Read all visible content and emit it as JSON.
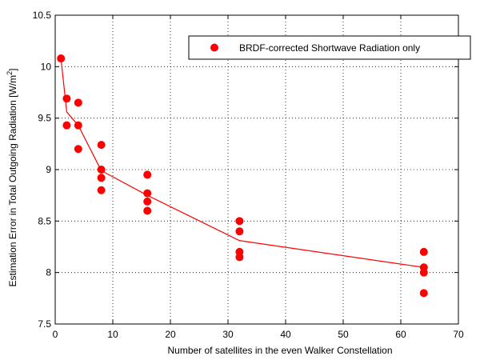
{
  "chart_data": {
    "type": "scatter",
    "title": "",
    "xlabel": "Number of satellites in the even Walker Constellation",
    "ylabel": "Estimation Error in Total Outgoing Radiation [W/m",
    "ylabel_superscript": "2",
    "ylabel_suffix": "]",
    "xlim": [
      0,
      70
    ],
    "ylim": [
      7.5,
      10.5
    ],
    "x_ticks": [
      0,
      10,
      20,
      30,
      40,
      50,
      60,
      70
    ],
    "y_ticks": [
      7.5,
      8,
      8.5,
      9,
      9.5,
      10,
      10.5
    ],
    "x_tick_labels": [
      "0",
      "10",
      "20",
      "30",
      "40",
      "50",
      "60",
      "70"
    ],
    "y_tick_labels": [
      "7.5",
      "8",
      "8.5",
      "9",
      "9.5",
      "10",
      "10.5"
    ],
    "grid": true,
    "legend_position": "top-right",
    "series": [
      {
        "name": "BRDF-corrected Shortwave Radiation only",
        "marker": "circle",
        "color": "#ff0000",
        "points": [
          {
            "x": 1,
            "y": 10.08
          },
          {
            "x": 2,
            "y": 9.69
          },
          {
            "x": 2,
            "y": 9.43
          },
          {
            "x": 4,
            "y": 9.65
          },
          {
            "x": 4,
            "y": 9.43
          },
          {
            "x": 4,
            "y": 9.2
          },
          {
            "x": 8,
            "y": 9.24
          },
          {
            "x": 8,
            "y": 9.0
          },
          {
            "x": 8,
            "y": 8.92
          },
          {
            "x": 8,
            "y": 8.8
          },
          {
            "x": 16,
            "y": 8.95
          },
          {
            "x": 16,
            "y": 8.77
          },
          {
            "x": 16,
            "y": 8.69
          },
          {
            "x": 16,
            "y": 8.6
          },
          {
            "x": 32,
            "y": 8.5
          },
          {
            "x": 32,
            "y": 8.4
          },
          {
            "x": 32,
            "y": 8.2
          },
          {
            "x": 32,
            "y": 8.15
          },
          {
            "x": 64,
            "y": 8.2
          },
          {
            "x": 64,
            "y": 8.05
          },
          {
            "x": 64,
            "y": 8.0
          },
          {
            "x": 64,
            "y": 7.8
          }
        ]
      },
      {
        "name": "",
        "type": "line",
        "color": "#ff0000",
        "x": [
          1,
          2,
          4,
          8,
          16,
          32,
          64
        ],
        "y": [
          10.08,
          9.56,
          9.43,
          8.99,
          8.75,
          8.31,
          8.05
        ]
      }
    ]
  }
}
